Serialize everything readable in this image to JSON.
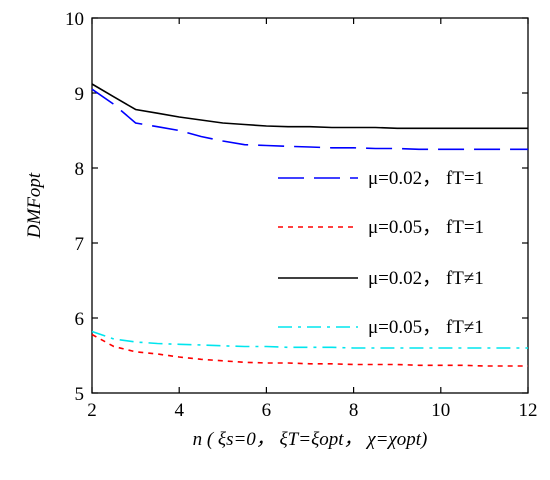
{
  "chart_data": {
    "type": "line",
    "x": [
      2,
      2.5,
      3,
      3.5,
      4,
      4.5,
      5,
      5.5,
      6,
      6.5,
      7,
      7.5,
      8,
      8.5,
      9,
      9.5,
      10,
      10.5,
      11,
      11.5,
      12
    ],
    "xlim": [
      2,
      12
    ],
    "ylim": [
      5,
      10
    ],
    "xticks": [
      "2",
      "4",
      "6",
      "8",
      "10",
      "12"
    ],
    "yticks": [
      "5",
      "6",
      "7",
      "8",
      "9",
      "10"
    ],
    "xticks_values": [
      2,
      4,
      6,
      8,
      10,
      12
    ],
    "yticks_values": [
      5,
      6,
      7,
      8,
      9,
      10
    ],
    "xlabel": "n ( ξs=0， ξT=ξopt， χ=χopt)",
    "ylabel": "DMFopt",
    "legend_position": "right",
    "grid": false,
    "series": [
      {
        "name": "μ=0.02， fT=1",
        "color": "#0000ff",
        "dash": "long-dash",
        "values": [
          9.05,
          8.85,
          8.6,
          8.55,
          8.5,
          8.42,
          8.36,
          8.31,
          8.3,
          8.29,
          8.28,
          8.27,
          8.27,
          8.26,
          8.26,
          8.25,
          8.25,
          8.25,
          8.25,
          8.25,
          8.25
        ]
      },
      {
        "name": "μ=0.05， fT=1",
        "color": "#ff0000",
        "dash": "dotted",
        "values": [
          5.78,
          5.62,
          5.55,
          5.52,
          5.48,
          5.45,
          5.43,
          5.41,
          5.4,
          5.4,
          5.39,
          5.39,
          5.38,
          5.38,
          5.38,
          5.37,
          5.37,
          5.37,
          5.36,
          5.36,
          5.36
        ]
      },
      {
        "name": "μ=0.02， fT≠1",
        "color": "#000000",
        "dash": "solid",
        "values": [
          9.12,
          8.95,
          8.78,
          8.73,
          8.68,
          8.64,
          8.6,
          8.58,
          8.56,
          8.55,
          8.55,
          8.54,
          8.54,
          8.54,
          8.53,
          8.53,
          8.53,
          8.53,
          8.53,
          8.53,
          8.53
        ]
      },
      {
        "name": "μ=0.05， fT≠1",
        "color": "#00e5ee",
        "dash": "dash-dot",
        "values": [
          5.82,
          5.72,
          5.68,
          5.66,
          5.65,
          5.64,
          5.63,
          5.62,
          5.62,
          5.61,
          5.61,
          5.61,
          5.6,
          5.6,
          5.6,
          5.6,
          5.6,
          5.6,
          5.6,
          5.6,
          5.6
        ]
      }
    ]
  }
}
